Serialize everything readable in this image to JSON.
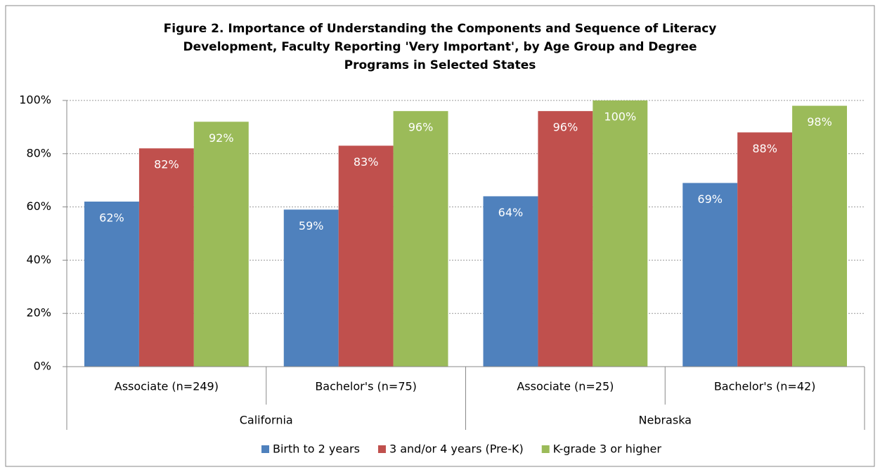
{
  "chart_data": {
    "type": "bar",
    "title": "Figure 2. Importance of Understanding the Components and Sequence of Literacy Development, Faculty Reporting 'Very Important', by Age Group and Degree Programs in Selected States",
    "categories": [
      "Associate (n=249)",
      "Bachelor's (n=75)",
      "Associate (n=25)",
      "Bachelor's (n=42)"
    ],
    "groups": [
      "California",
      "Nebraska"
    ],
    "series": [
      {
        "name": "Birth to 2 years",
        "color": "#4f81bd",
        "values": [
          62,
          59,
          64,
          69
        ],
        "value_labels": [
          "62%",
          "59%",
          "64%",
          "69%"
        ]
      },
      {
        "name": "3 and/or 4 years (Pre-K)",
        "color": "#c0504d",
        "values": [
          82,
          83,
          96,
          88
        ],
        "value_labels": [
          "82%",
          "83%",
          "96%",
          "88%"
        ]
      },
      {
        "name": "K-grade 3 or higher",
        "color": "#9bbb59",
        "values": [
          92,
          96,
          100,
          98
        ],
        "value_labels": [
          "92%",
          "96%",
          "100%",
          "98%"
        ]
      }
    ],
    "ylim": [
      0,
      100
    ],
    "yticks": [
      {
        "value": 0,
        "label": "0%"
      },
      {
        "value": 20,
        "label": "20%"
      },
      {
        "value": 40,
        "label": "40%"
      },
      {
        "value": 60,
        "label": "60%"
      },
      {
        "value": 80,
        "label": "80%"
      },
      {
        "value": 100,
        "label": "100%"
      }
    ],
    "grid": true,
    "legend": "bottom"
  }
}
